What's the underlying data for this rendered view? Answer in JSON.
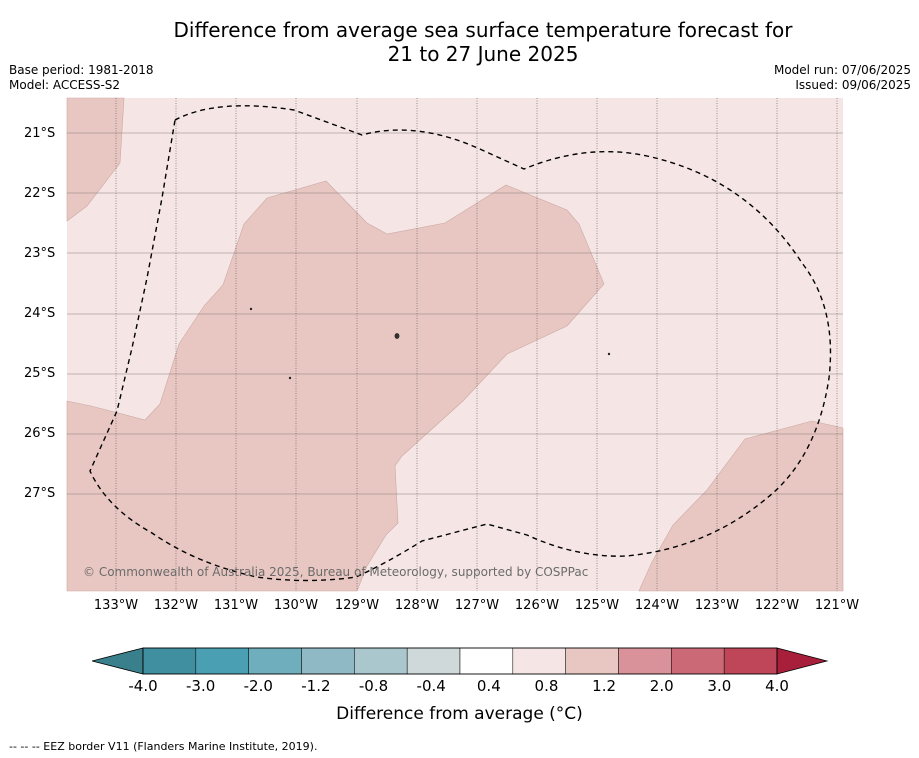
{
  "title_line1": "Difference from average sea surface temperature forecast for",
  "title_line2": "21 to 27 June 2025",
  "base_period": "Base period: 1981-2018",
  "model": "Model: ACCESS-S2",
  "model_run": "Model run: 07/06/2025",
  "issued": "Issued: 09/06/2025",
  "lat_labels": [
    "21°S",
    "22°S",
    "23°S",
    "24°S",
    "25°S",
    "26°S",
    "27°S"
  ],
  "lon_labels": [
    "133°W",
    "132°W",
    "131°W",
    "130°W",
    "129°W",
    "128°W",
    "127°W",
    "126°W",
    "125°W",
    "124°W",
    "123°W",
    "122°W",
    "121°W"
  ],
  "credit": "© Commonwealth of Australia 2025, Bureau of Meteorology, supported by COSPPac",
  "colorbar": {
    "ticks": [
      "-4.0",
      "-3.0",
      "-2.0",
      "-1.2",
      "-0.8",
      "-0.4",
      "0.4",
      "0.8",
      "1.2",
      "2.0",
      "3.0",
      "4.0"
    ],
    "colors": [
      "#3f8fa0",
      "#4aa0b2",
      "#6faebd",
      "#8fbac5",
      "#a9c7cc",
      "#cfd9da",
      "#ffffff",
      "#f5e6e5",
      "#e8c7c2",
      "#d9919a",
      "#cb6a76",
      "#be4658"
    ],
    "low_extend_color": "#3a7f8c",
    "high_extend_color": "#a81f3c",
    "title": "Difference from average (°C)"
  },
  "map_colors": {
    "light_band": "#f5e6e5",
    "mid_band": "#e8c7c2"
  },
  "footer": "--  --  -- EEZ border V11 (Flanders Marine Institute, 2019)."
}
